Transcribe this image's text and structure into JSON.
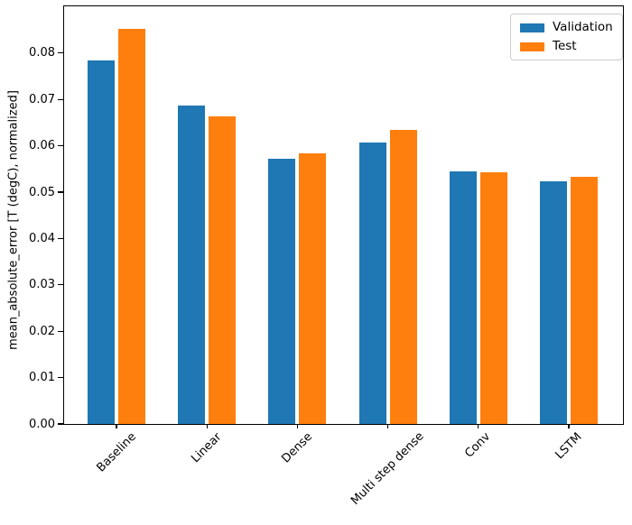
{
  "chart_data": {
    "type": "bar",
    "title": "",
    "xlabel": "",
    "ylabel": "mean_absolute_error [T (degC), normalized]",
    "categories": [
      "Baseline",
      "Linear",
      "Dense",
      "Multi step dense",
      "Conv",
      "LSTM"
    ],
    "series": [
      {
        "name": "Validation",
        "color": "#1f77b4",
        "values": [
          0.0785,
          0.0686,
          0.0572,
          0.0607,
          0.0545,
          0.0524
        ]
      },
      {
        "name": "Test",
        "color": "#ff7f0e",
        "values": [
          0.0853,
          0.0663,
          0.0583,
          0.0634,
          0.0542,
          0.0533
        ]
      }
    ],
    "ylim": [
      0,
      0.0901
    ],
    "yticks": [
      "0.00",
      "0.01",
      "0.02",
      "0.03",
      "0.04",
      "0.05",
      "0.06",
      "0.07",
      "0.08"
    ],
    "xtick_rotation_deg": 45,
    "grid": false,
    "legend_position": "upper right",
    "axis_color": "#000000",
    "background_color": "#ffffff"
  }
}
